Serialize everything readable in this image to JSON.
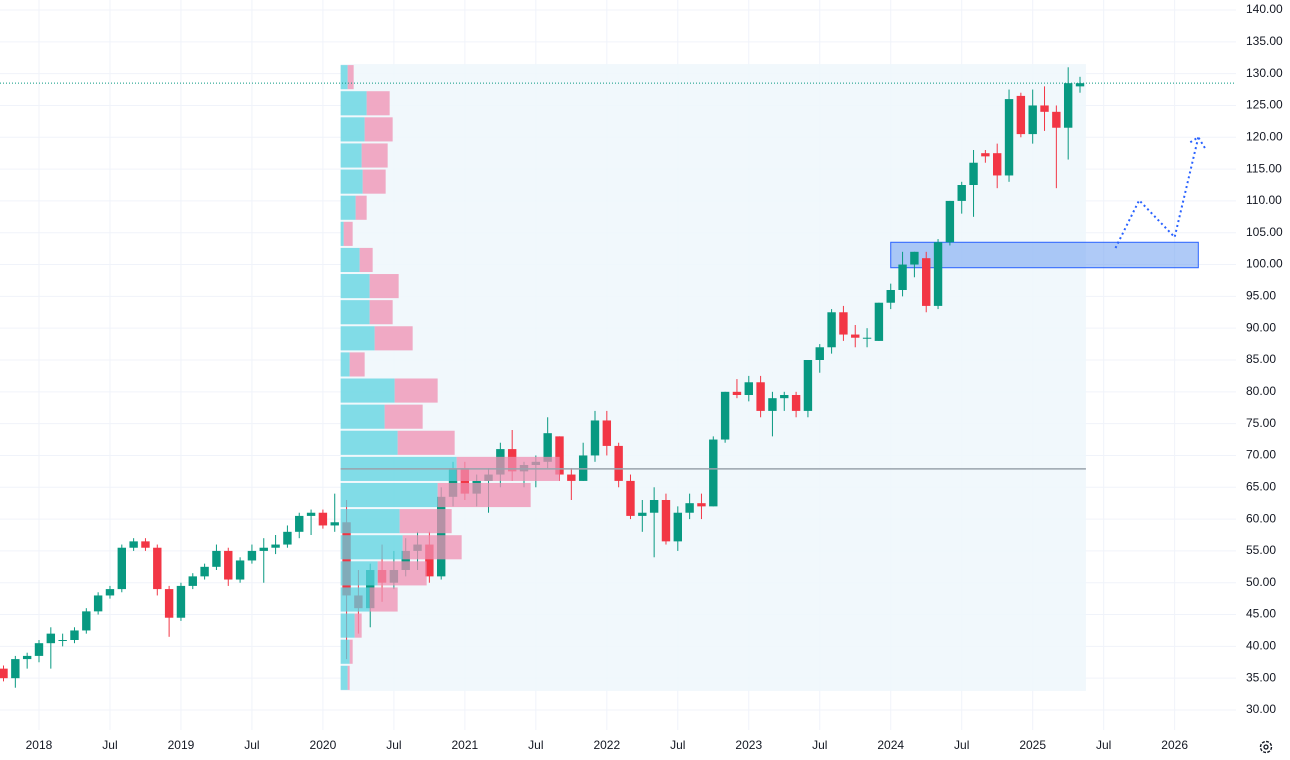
{
  "chart_data": {
    "type": "candlestick",
    "up_color": "#089981",
    "down_color": "#f23645",
    "x": [
      "2017-10",
      "2017-11",
      "2017-12",
      "2018-01",
      "2018-02",
      "2018-03",
      "2018-04",
      "2018-05",
      "2018-06",
      "2018-07",
      "2018-08",
      "2018-09",
      "2018-10",
      "2018-11",
      "2018-12",
      "2019-01",
      "2019-02",
      "2019-03",
      "2019-04",
      "2019-05",
      "2019-06",
      "2019-07",
      "2019-08",
      "2019-09",
      "2019-10",
      "2019-11",
      "2019-12",
      "2020-01",
      "2020-02",
      "2020-03",
      "2020-04",
      "2020-05",
      "2020-06",
      "2020-07",
      "2020-08",
      "2020-09",
      "2020-10",
      "2020-11",
      "2020-12",
      "2021-01",
      "2021-02",
      "2021-03",
      "2021-04",
      "2021-05",
      "2021-06",
      "2021-07",
      "2021-08",
      "2021-09",
      "2021-10",
      "2021-11",
      "2021-12",
      "2022-01",
      "2022-02",
      "2022-03",
      "2022-04",
      "2022-05",
      "2022-06",
      "2022-07",
      "2022-08",
      "2022-09",
      "2022-10",
      "2022-11",
      "2022-12",
      "2023-01",
      "2023-02",
      "2023-03",
      "2023-04",
      "2023-05",
      "2023-06",
      "2023-07",
      "2023-08",
      "2023-09",
      "2023-10",
      "2023-11",
      "2023-12",
      "2024-01",
      "2024-02",
      "2024-03",
      "2024-04",
      "2024-05",
      "2024-06",
      "2024-07",
      "2024-08",
      "2024-09",
      "2024-10",
      "2024-11",
      "2024-12",
      "2025-01",
      "2025-02",
      "2025-03",
      "2025-04",
      "2025-05"
    ],
    "open": [
      36.5,
      35,
      38,
      38.5,
      40.5,
      41,
      41,
      42.5,
      45.5,
      48,
      49,
      55.5,
      56.5,
      55.5,
      49,
      44.5,
      49.5,
      51,
      52.5,
      55,
      50.5,
      53.5,
      55,
      55.5,
      56,
      58,
      60.5,
      61,
      59,
      59.5,
      48,
      46,
      52,
      50,
      52,
      55,
      56,
      51,
      63.5,
      68,
      64,
      66,
      67,
      71,
      67.5,
      68.5,
      69,
      73,
      67,
      66,
      70,
      75.5,
      71.5,
      66,
      60.5,
      61,
      63,
      56.5,
      61,
      62.5,
      62,
      72.5,
      80,
      79.5,
      81.5,
      77,
      79,
      79.5,
      77,
      85,
      87,
      92.5,
      89,
      88.5,
      88,
      94,
      96,
      100,
      101,
      93.5,
      103.5,
      110,
      112.5,
      117.5,
      117.5,
      114,
      126.5,
      120.5,
      125,
      124,
      121.5,
      128
    ],
    "high": [
      37,
      38.5,
      39,
      41,
      43,
      42,
      43,
      46,
      48.5,
      49.5,
      56,
      57,
      57,
      56,
      49.5,
      50,
      51.5,
      53,
      56,
      55.5,
      54,
      56,
      57,
      57.5,
      59,
      61,
      61.5,
      61.5,
      64,
      63,
      52,
      53,
      56,
      55,
      57,
      58,
      58,
      65,
      69,
      69,
      67,
      68,
      72,
      74,
      69,
      70,
      76,
      73,
      68,
      72,
      77,
      77,
      72,
      67,
      63,
      65,
      64,
      62,
      64,
      64,
      73,
      80,
      82,
      82.5,
      82.5,
      80,
      80,
      80,
      85,
      87.5,
      93,
      93.5,
      90.5,
      90,
      94,
      97,
      102,
      102,
      102,
      104,
      110,
      113,
      118,
      118,
      119,
      127.5,
      127,
      127.5,
      128,
      125,
      131,
      129.5
    ],
    "low": [
      34.5,
      33.5,
      36.5,
      37.5,
      36.5,
      40,
      40.5,
      42,
      45,
      47.5,
      48.5,
      55,
      55,
      48,
      41.5,
      44,
      49,
      50.5,
      52,
      49.5,
      50,
      53,
      50,
      54.5,
      55.5,
      57,
      57.5,
      58.5,
      58,
      38,
      42,
      43,
      47,
      49,
      51,
      52,
      50,
      50.5,
      62,
      63,
      62,
      61,
      65,
      66,
      65,
      65,
      68,
      66,
      63,
      66,
      69,
      70,
      65,
      60,
      58,
      54,
      56,
      55,
      60,
      60,
      62,
      72,
      79,
      78.5,
      76,
      73,
      77,
      76,
      76,
      83,
      86,
      88,
      87,
      87,
      88,
      93,
      95,
      98,
      92.5,
      93,
      103,
      108,
      107.5,
      116,
      112,
      113,
      120,
      119,
      121,
      112,
      116.5,
      127
    ],
    "close": [
      35,
      38,
      38.5,
      40.5,
      42,
      41,
      42.5,
      45.5,
      48,
      49,
      55.5,
      56.5,
      55.5,
      49,
      44.5,
      49.5,
      51,
      52.5,
      55,
      50.5,
      53.5,
      55,
      55.5,
      56,
      58,
      60.5,
      61,
      59,
      59.5,
      48,
      46,
      52,
      50,
      52,
      55,
      56,
      51,
      63.5,
      68,
      64,
      66,
      67,
      71,
      67.5,
      68.5,
      69,
      73.5,
      67,
      66,
      70,
      75.5,
      71.5,
      66,
      60.5,
      61,
      63,
      56.5,
      61,
      62.5,
      62,
      72.5,
      80,
      79.5,
      81.5,
      77,
      79,
      79.5,
      77,
      85,
      87,
      92.5,
      89,
      88.5,
      88.5,
      94,
      96,
      100,
      102,
      93.5,
      103.5,
      110,
      112.5,
      116,
      117,
      114,
      126,
      120.5,
      125,
      124,
      121.5,
      128.5,
      128.5
    ],
    "xlim": [
      "2017-10",
      "2026-06"
    ],
    "xticks": [
      {
        "value": "2018-01",
        "label": "2018"
      },
      {
        "value": "2018-07",
        "label": "Jul"
      },
      {
        "value": "2019-01",
        "label": "2019"
      },
      {
        "value": "2019-07",
        "label": "Jul"
      },
      {
        "value": "2020-01",
        "label": "2020"
      },
      {
        "value": "2020-07",
        "label": "Jul"
      },
      {
        "value": "2021-01",
        "label": "2021"
      },
      {
        "value": "2021-07",
        "label": "Jul"
      },
      {
        "value": "2022-01",
        "label": "2022"
      },
      {
        "value": "2022-07",
        "label": "Jul"
      },
      {
        "value": "2023-01",
        "label": "2023"
      },
      {
        "value": "2023-07",
        "label": "Jul"
      },
      {
        "value": "2024-01",
        "label": "2024"
      },
      {
        "value": "2024-07",
        "label": "Jul"
      },
      {
        "value": "2025-01",
        "label": "2025"
      },
      {
        "value": "2025-07",
        "label": "Jul"
      },
      {
        "value": "2026-01",
        "label": "2026"
      }
    ],
    "ylim": [
      30,
      140
    ],
    "yticks": [
      {
        "value": 140,
        "label": "140.00"
      },
      {
        "value": 135,
        "label": "135.00"
      },
      {
        "value": 130,
        "label": "130.00"
      },
      {
        "value": 125,
        "label": "125.00"
      },
      {
        "value": 120,
        "label": "120.00"
      },
      {
        "value": 115,
        "label": "115.00"
      },
      {
        "value": 110,
        "label": "110.00"
      },
      {
        "value": 105,
        "label": "105.00"
      },
      {
        "value": 100,
        "label": "100.00"
      },
      {
        "value": 95,
        "label": "95.00"
      },
      {
        "value": 90,
        "label": "90.00"
      },
      {
        "value": 85,
        "label": "85.00"
      },
      {
        "value": 80,
        "label": "80.00"
      },
      {
        "value": 75,
        "label": "75.00"
      },
      {
        "value": 70,
        "label": "70.00"
      },
      {
        "value": 65,
        "label": "65.00"
      },
      {
        "value": 60,
        "label": "60.00"
      },
      {
        "value": 55,
        "label": "55.00"
      },
      {
        "value": 50,
        "label": "50.00"
      },
      {
        "value": 45,
        "label": "45.00"
      },
      {
        "value": 40,
        "label": "40.00"
      },
      {
        "value": 35,
        "label": "35.00"
      },
      {
        "value": 30,
        "label": "30.00"
      }
    ],
    "grid": true,
    "volume_profile": {
      "from": "2020-03",
      "to": "2025-05",
      "price_range": [
        33,
        131.5
      ],
      "poc": 67.9,
      "up_color": "#5bd3e0",
      "down_color": "#ef8fb1",
      "up": [
        7,
        9,
        14,
        29,
        37,
        62,
        59,
        97,
        116,
        57,
        44,
        54,
        9,
        34,
        29,
        29,
        19,
        3,
        15,
        22,
        21,
        24,
        26,
        7
      ],
      "down": [
        2,
        3,
        7,
        28,
        49,
        59,
        52,
        93,
        103,
        57,
        38,
        43,
        15,
        38,
        23,
        29,
        13,
        9,
        11,
        23,
        26,
        28,
        23,
        6
      ]
    },
    "zone": {
      "x": [
        "2024-01",
        "2026-03"
      ],
      "y": [
        99.5,
        103.5
      ],
      "color": "#6d9ef0"
    },
    "projection": {
      "x": [
        "2025-08",
        "2025-10",
        "2026-01",
        "2026-03"
      ],
      "y": [
        102.6,
        110.1,
        104.3,
        120
      ],
      "color": "#2962ff"
    }
  }
}
